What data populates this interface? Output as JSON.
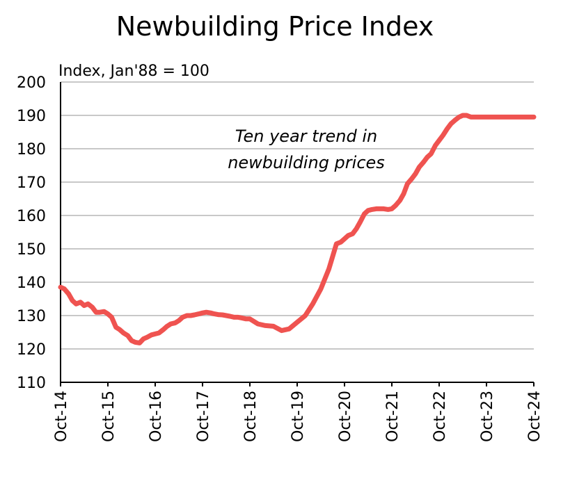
{
  "chart_data": {
    "type": "line",
    "title": "Newbuilding Price Index",
    "ylabel": "Index, Jan'88 = 100",
    "xlabel": "",
    "ylim": [
      110,
      200
    ],
    "yticks": [
      110,
      120,
      130,
      140,
      150,
      160,
      170,
      180,
      190,
      200
    ],
    "xticks": [
      "Oct-14",
      "Oct-15",
      "Oct-16",
      "Oct-17",
      "Oct-18",
      "Oct-19",
      "Oct-20",
      "Oct-21",
      "Oct-22",
      "Oct-23",
      "Oct-24"
    ],
    "grid": true,
    "line_color": "#ef5350",
    "annotation": [
      "Ten year trend in",
      "newbuilding prices"
    ],
    "series": [
      {
        "name": "Newbuilding Price Index",
        "x": [
          0,
          0.08,
          0.17,
          0.25,
          0.33,
          0.42,
          0.5,
          0.58,
          0.67,
          0.75,
          0.83,
          0.92,
          1.0,
          1.08,
          1.17,
          1.25,
          1.33,
          1.42,
          1.5,
          1.58,
          1.67,
          1.75,
          1.83,
          1.92,
          2.0,
          2.08,
          2.17,
          2.25,
          2.33,
          2.42,
          2.5,
          2.58,
          2.67,
          2.75,
          2.83,
          2.92,
          3.0,
          3.08,
          3.17,
          3.25,
          3.33,
          3.42,
          3.5,
          3.58,
          3.67,
          3.75,
          3.83,
          3.92,
          4.0,
          4.17,
          4.33,
          4.5,
          4.67,
          4.83,
          5.0,
          5.17,
          5.33,
          5.5,
          5.67,
          5.83,
          5.92,
          6.0,
          6.08,
          6.17,
          6.25,
          6.33,
          6.42,
          6.5,
          6.58,
          6.67,
          6.75,
          6.83,
          6.92,
          7.0,
          7.08,
          7.17,
          7.25,
          7.33,
          7.42,
          7.5,
          7.58,
          7.67,
          7.75,
          7.83,
          7.92,
          8.0,
          8.08,
          8.17,
          8.25,
          8.33,
          8.42,
          8.5,
          8.58,
          8.67,
          8.75,
          8.83,
          8.92,
          9.0,
          9.08,
          9.17,
          9.25,
          9.33,
          9.42,
          9.5,
          9.58,
          9.67,
          9.75,
          9.83,
          9.92,
          10.0
        ],
        "values": [
          138.5,
          138.0,
          136.5,
          134.5,
          133.5,
          134.0,
          133.0,
          133.5,
          132.5,
          131.0,
          131.0,
          131.2,
          130.5,
          129.5,
          126.5,
          125.8,
          124.8,
          124.0,
          122.5,
          122.0,
          121.8,
          123.0,
          123.5,
          124.2,
          124.5,
          124.8,
          125.8,
          126.8,
          127.5,
          127.8,
          128.5,
          129.5,
          130.0,
          130.0,
          130.2,
          130.5,
          130.8,
          131.0,
          130.8,
          130.5,
          130.3,
          130.2,
          130.0,
          129.8,
          129.5,
          129.5,
          129.3,
          129.0,
          129.0,
          127.5,
          127.0,
          126.8,
          125.5,
          126.0,
          128.0,
          130.0,
          133.5,
          138.0,
          144.0,
          151.5,
          152.0,
          153.0,
          154.0,
          154.5,
          156.0,
          158.0,
          160.5,
          161.5,
          161.8,
          162.0,
          162.0,
          162.0,
          161.8,
          162.0,
          163.0,
          164.5,
          166.5,
          169.5,
          171.0,
          172.5,
          174.5,
          176.0,
          177.5,
          178.5,
          181.0,
          182.5,
          184.0,
          186.0,
          187.5,
          188.5,
          189.5,
          190.0,
          190.0,
          189.5,
          189.5,
          189.5,
          189.5,
          189.5,
          189.5,
          189.5,
          189.5,
          189.5,
          189.5,
          189.5,
          189.5,
          189.5,
          189.5,
          189.5,
          189.5,
          189.5
        ]
      }
    ]
  }
}
